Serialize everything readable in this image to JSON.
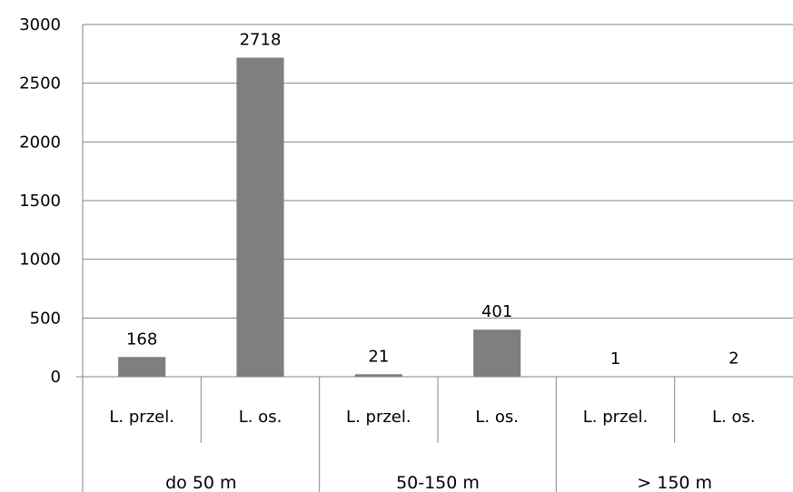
{
  "chart_data": {
    "type": "bar",
    "title": "",
    "xlabel": "",
    "ylabel": "",
    "ylim": [
      0,
      3000
    ],
    "yticks": [
      0,
      500,
      1000,
      1500,
      2000,
      2500,
      3000
    ],
    "grid": true,
    "legend": "none",
    "categories": [
      "L. przel.",
      "L. os.",
      "L. przel.",
      "L. os.",
      "L. przel.",
      "L. os."
    ],
    "groups": [
      "do 50 m",
      "50-150 m",
      "> 150 m"
    ],
    "values": [
      168,
      2718,
      21,
      401,
      1,
      2
    ],
    "bar_color": "#7f7f7f"
  }
}
